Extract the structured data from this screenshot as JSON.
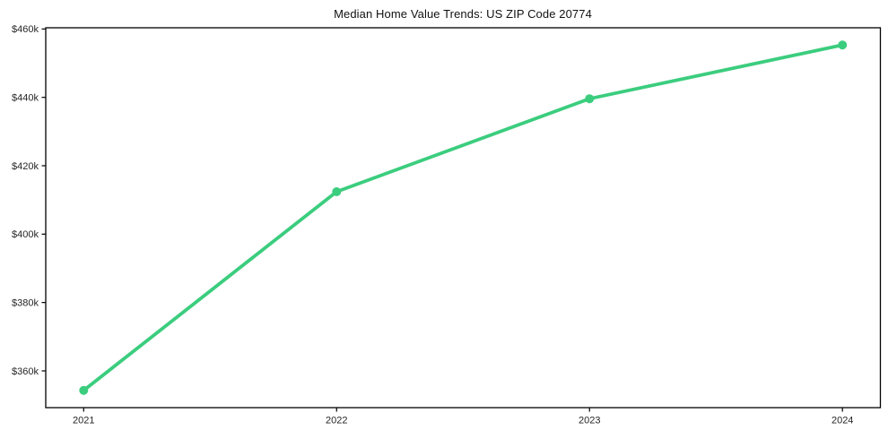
{
  "figure": {
    "background": "#ffffff",
    "axis_color": "#000000",
    "tick_text_color": "#262626",
    "accent_green": "#3bcd7e"
  },
  "chart_data": {
    "type": "line",
    "title": "Median Home Value Trends: US ZIP Code 20774",
    "xlabel": "",
    "ylabel": "",
    "x": [
      2021,
      2022,
      2023,
      2024
    ],
    "x_tick_labels": [
      "2021",
      "2022",
      "2023",
      "2024"
    ],
    "series": [
      {
        "name": "median-home-value",
        "values": [
          354300,
          412400,
          439600,
          455300
        ]
      }
    ],
    "y_ticks": [
      {
        "value": 360000,
        "label": "$360k"
      },
      {
        "value": 380000,
        "label": "$380k"
      },
      {
        "value": 400000,
        "label": "$400k"
      },
      {
        "value": 420000,
        "label": "$420k"
      },
      {
        "value": 440000,
        "label": "$440k"
      },
      {
        "value": 460000,
        "label": "$460k"
      }
    ],
    "xlim": [
      2020.85,
      2024.15
    ],
    "ylim": [
      349250,
      460350
    ],
    "grid": false,
    "legend": "none",
    "marker": "circle"
  }
}
